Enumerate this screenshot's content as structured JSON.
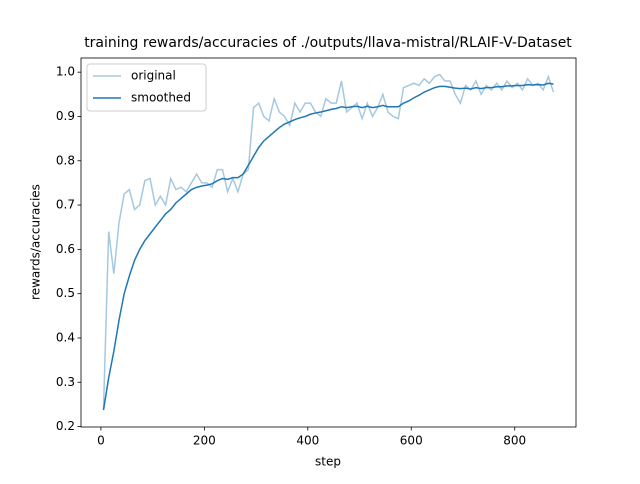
{
  "chart_data": {
    "type": "line",
    "title": "training rewards/accuracies of ./outputs/llava-mistral/RLAIF-V-Dataset",
    "x_label": "step",
    "y_label": "rewards/accuracies",
    "x": [
      5,
      15,
      25,
      35,
      45,
      55,
      65,
      75,
      85,
      95,
      105,
      115,
      125,
      135,
      145,
      155,
      165,
      175,
      185,
      195,
      205,
      215,
      225,
      235,
      245,
      255,
      265,
      275,
      285,
      295,
      305,
      315,
      325,
      335,
      345,
      355,
      365,
      375,
      385,
      395,
      405,
      415,
      425,
      435,
      445,
      455,
      465,
      475,
      485,
      495,
      505,
      515,
      525,
      535,
      545,
      555,
      565,
      575,
      585,
      595,
      605,
      615,
      625,
      635,
      645,
      655,
      665,
      675,
      685,
      695,
      705,
      715,
      725,
      735,
      745,
      755,
      765,
      775,
      785,
      795,
      805,
      815,
      825,
      835,
      845,
      855,
      865,
      875
    ],
    "series": [
      {
        "name": "original",
        "color": "#a5c8e1",
        "values": [
          0.24,
          0.64,
          0.545,
          0.66,
          0.725,
          0.735,
          0.69,
          0.7,
          0.755,
          0.76,
          0.7,
          0.72,
          0.7,
          0.76,
          0.735,
          0.74,
          0.73,
          0.75,
          0.77,
          0.75,
          0.75,
          0.74,
          0.78,
          0.78,
          0.73,
          0.76,
          0.73,
          0.77,
          0.78,
          0.92,
          0.93,
          0.9,
          0.89,
          0.94,
          0.91,
          0.9,
          0.88,
          0.93,
          0.91,
          0.93,
          0.93,
          0.91,
          0.9,
          0.94,
          0.93,
          0.93,
          0.98,
          0.91,
          0.92,
          0.93,
          0.895,
          0.93,
          0.9,
          0.92,
          0.95,
          0.91,
          0.9,
          0.895,
          0.965,
          0.97,
          0.975,
          0.97,
          0.985,
          0.975,
          0.99,
          0.995,
          0.98,
          0.98,
          0.95,
          0.93,
          0.97,
          0.96,
          0.98,
          0.95,
          0.97,
          0.96,
          0.975,
          0.96,
          0.98,
          0.965,
          0.975,
          0.96,
          0.985,
          0.97,
          0.975,
          0.96,
          0.99,
          0.955
        ]
      },
      {
        "name": "smoothed",
        "color": "#1f77b4",
        "values": [
          0.237,
          0.31,
          0.37,
          0.44,
          0.5,
          0.54,
          0.575,
          0.6,
          0.62,
          0.635,
          0.65,
          0.665,
          0.68,
          0.69,
          0.705,
          0.715,
          0.725,
          0.735,
          0.74,
          0.743,
          0.745,
          0.748,
          0.755,
          0.76,
          0.758,
          0.762,
          0.762,
          0.77,
          0.79,
          0.81,
          0.83,
          0.845,
          0.855,
          0.865,
          0.875,
          0.883,
          0.888,
          0.893,
          0.897,
          0.9,
          0.905,
          0.908,
          0.91,
          0.913,
          0.916,
          0.918,
          0.922,
          0.92,
          0.922,
          0.923,
          0.92,
          0.923,
          0.92,
          0.922,
          0.925,
          0.922,
          0.922,
          0.922,
          0.93,
          0.935,
          0.942,
          0.948,
          0.955,
          0.96,
          0.965,
          0.968,
          0.968,
          0.966,
          0.964,
          0.963,
          0.964,
          0.962,
          0.965,
          0.963,
          0.965,
          0.965,
          0.967,
          0.967,
          0.969,
          0.969,
          0.97,
          0.97,
          0.972,
          0.971,
          0.972,
          0.971,
          0.975,
          0.973
        ]
      }
    ],
    "xlim": [
      -38.5,
      918.5
    ],
    "ylim": [
      0.199,
      1.032
    ],
    "xticks": [
      0,
      200,
      400,
      600,
      800
    ],
    "yticks": [
      0.2,
      0.3,
      0.4,
      0.5,
      0.6,
      0.7,
      0.8,
      0.9,
      {
        "value": 1,
        "label": "1.0"
      }
    ],
    "legend": "upper left",
    "grid": false
  }
}
